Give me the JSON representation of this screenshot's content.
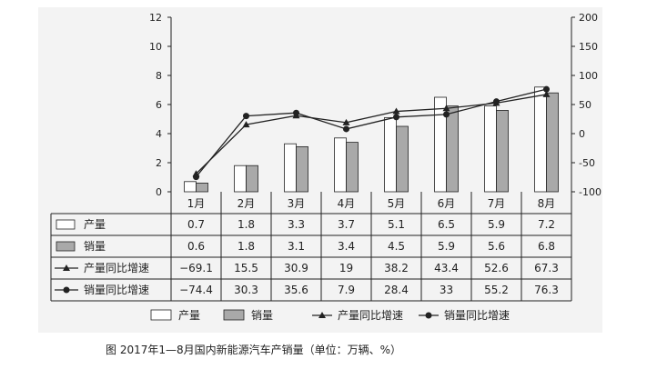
{
  "chart_data": {
    "type": "bar",
    "title": "",
    "categories": [
      "1月",
      "2月",
      "3月",
      "4月",
      "5月",
      "6月",
      "7月",
      "8月"
    ],
    "series": [
      {
        "name": "产量",
        "type": "bar",
        "axis": "left",
        "values": [
          0.7,
          1.8,
          3.3,
          3.7,
          5.1,
          6.5,
          5.9,
          7.2
        ]
      },
      {
        "name": "销量",
        "type": "bar",
        "axis": "left",
        "values": [
          0.6,
          1.8,
          3.1,
          3.4,
          4.5,
          5.9,
          5.6,
          6.8
        ]
      },
      {
        "name": "产量同比增速",
        "type": "line",
        "marker": "triangle",
        "axis": "right",
        "values": [
          -69.1,
          15.5,
          30.9,
          19,
          38.2,
          43.4,
          52.6,
          67.3
        ]
      },
      {
        "name": "销量同比增速",
        "type": "line",
        "marker": "circle",
        "axis": "right",
        "values": [
          -74.4,
          30.3,
          35.6,
          7.9,
          28.4,
          33,
          55.2,
          76.3
        ]
      }
    ],
    "ylim_left": [
      0,
      12
    ],
    "yticks_left": [
      "0",
      "2",
      "4",
      "6",
      "8",
      "10",
      "12"
    ],
    "ylim_right": [
      -100,
      200
    ],
    "yticks_right": [
      "-100",
      "-50",
      "0",
      "50",
      "100",
      "150",
      "200"
    ],
    "table_rows": [
      {
        "label": "产量",
        "cells": [
          "0.7",
          "1.8",
          "3.3",
          "3.7",
          "5.1",
          "6.5",
          "5.9",
          "7.2"
        ]
      },
      {
        "label": "销量",
        "cells": [
          "0.6",
          "1.8",
          "3.1",
          "3.4",
          "4.5",
          "5.9",
          "5.6",
          "6.8"
        ]
      },
      {
        "label": "产量同比增速",
        "cells": [
          "−69.1",
          "15.5",
          "30.9",
          "19",
          "38.2",
          "43.4",
          "52.6",
          "67.3"
        ]
      },
      {
        "label": "销量同比增速",
        "cells": [
          "−74.4",
          "30.3",
          "35.6",
          "7.9",
          "28.4",
          "33",
          "55.2",
          "76.3"
        ]
      }
    ],
    "legend_position": "bottom",
    "grid": false
  },
  "colors": {
    "bar_output_fill": "#ffffff",
    "bar_sales_fill": "#a9a9a9",
    "ink": "#222222",
    "panel_bg": "#f3f3f3"
  },
  "caption": "图  2017年1—8月国内新能源汽车产销量（单位：万辆、%）"
}
